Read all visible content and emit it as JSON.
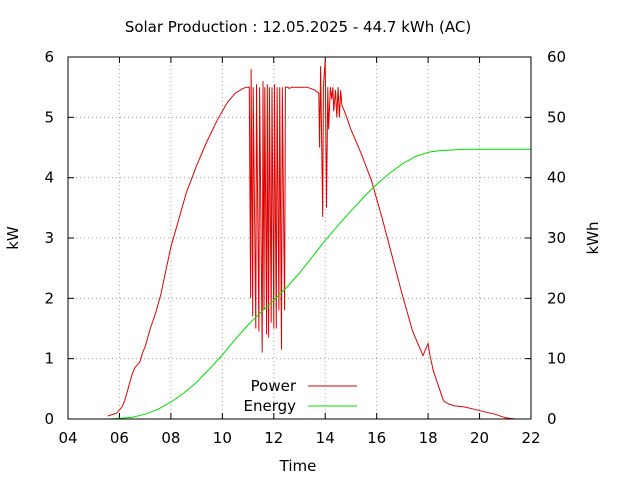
{
  "chart_data": {
    "type": "line",
    "title": "Solar Production : 12.05.2025 - 44.7 kWh (AC)",
    "xlabel": "Time",
    "ylabel": "kW",
    "y2label": "kWh",
    "xlim": [
      4,
      22
    ],
    "ylim": [
      0,
      6
    ],
    "y2lim": [
      0,
      60
    ],
    "xticks": [
      "04",
      "06",
      "08",
      "10",
      "12",
      "14",
      "16",
      "18",
      "20",
      "22"
    ],
    "yticks": [
      "0",
      "1",
      "2",
      "3",
      "4",
      "5",
      "6"
    ],
    "y2ticks": [
      "0",
      "10",
      "20",
      "30",
      "40",
      "50",
      "60"
    ],
    "grid": true,
    "legend_position": "bottom-center",
    "series": [
      {
        "name": "Power",
        "color": "#e00000",
        "axis": "y",
        "x": [
          5.55,
          5.9,
          6.1,
          6.2,
          6.3,
          6.4,
          6.5,
          6.6,
          6.7,
          6.8,
          6.9,
          7.0,
          7.2,
          7.4,
          7.5,
          7.6,
          7.7,
          7.8,
          8.0,
          8.3,
          8.6,
          9.0,
          9.4,
          9.8,
          10.2,
          10.5,
          10.8,
          10.95,
          11.05,
          11.1,
          11.12,
          11.18,
          11.2,
          11.3,
          11.33,
          11.42,
          11.45,
          11.55,
          11.58,
          11.62,
          11.65,
          11.72,
          11.75,
          11.8,
          11.83,
          11.9,
          11.93,
          12.0,
          12.03,
          12.1,
          12.13,
          12.2,
          12.23,
          12.3,
          12.33,
          12.42,
          12.45,
          12.55,
          12.6,
          12.7,
          13.0,
          13.3,
          13.6,
          13.75,
          13.78,
          13.82,
          13.9,
          13.93,
          14.0,
          14.05,
          14.1,
          14.13,
          14.2,
          14.25,
          14.3,
          14.33,
          14.4,
          14.45,
          14.5,
          14.55,
          14.6,
          14.65,
          14.75,
          15.0,
          15.4,
          15.8,
          16.2,
          16.6,
          17.0,
          17.4,
          17.8,
          18.0,
          18.05,
          18.1,
          18.2,
          18.4,
          18.6,
          18.8,
          19.0,
          19.4,
          19.8,
          20.2,
          20.6,
          21.0,
          21.4
        ],
        "values": [
          0.05,
          0.1,
          0.2,
          0.3,
          0.45,
          0.6,
          0.75,
          0.85,
          0.9,
          0.95,
          1.1,
          1.2,
          1.5,
          1.75,
          1.9,
          2.05,
          2.25,
          2.45,
          2.85,
          3.3,
          3.75,
          4.2,
          4.6,
          4.95,
          5.25,
          5.4,
          5.48,
          5.5,
          5.5,
          2.0,
          5.8,
          1.7,
          5.5,
          1.5,
          5.55,
          1.45,
          5.5,
          1.1,
          5.6,
          1.8,
          5.5,
          1.4,
          5.55,
          1.35,
          5.5,
          1.6,
          5.5,
          1.5,
          5.55,
          1.5,
          5.5,
          1.8,
          5.5,
          1.15,
          5.5,
          1.8,
          5.5,
          5.5,
          5.48,
          5.5,
          5.5,
          5.5,
          5.45,
          5.4,
          4.5,
          5.85,
          3.35,
          5.5,
          5.95,
          3.5,
          5.5,
          4.8,
          5.5,
          5.3,
          5.5,
          5.1,
          5.45,
          5.0,
          5.5,
          5.0,
          5.45,
          5.2,
          5.1,
          4.8,
          4.4,
          3.95,
          3.35,
          2.7,
          2.05,
          1.45,
          1.05,
          1.25,
          1.1,
          1.0,
          0.8,
          0.55,
          0.3,
          0.25,
          0.22,
          0.2,
          0.16,
          0.12,
          0.08,
          0.02,
          0.0
        ]
      },
      {
        "name": "Energy",
        "color": "#00dd00",
        "axis": "y2",
        "x": [
          5.55,
          6.0,
          6.5,
          7.0,
          7.5,
          8.0,
          8.5,
          9.0,
          9.5,
          10.0,
          10.5,
          11.0,
          11.5,
          12.0,
          12.5,
          13.0,
          13.5,
          14.0,
          14.5,
          15.0,
          15.5,
          16.0,
          16.5,
          17.0,
          17.5,
          18.0,
          18.5,
          19.0,
          19.5,
          20.0,
          21.0,
          22.0
        ],
        "values": [
          0.0,
          0.1,
          0.3,
          0.8,
          1.6,
          2.8,
          4.3,
          6.1,
          8.3,
          10.6,
          13.2,
          15.6,
          17.7,
          19.7,
          21.8,
          24.2,
          26.9,
          29.6,
          32.1,
          34.5,
          36.8,
          38.9,
          40.7,
          42.3,
          43.5,
          44.2,
          44.5,
          44.6,
          44.7,
          44.7,
          44.7,
          44.7
        ]
      }
    ]
  }
}
